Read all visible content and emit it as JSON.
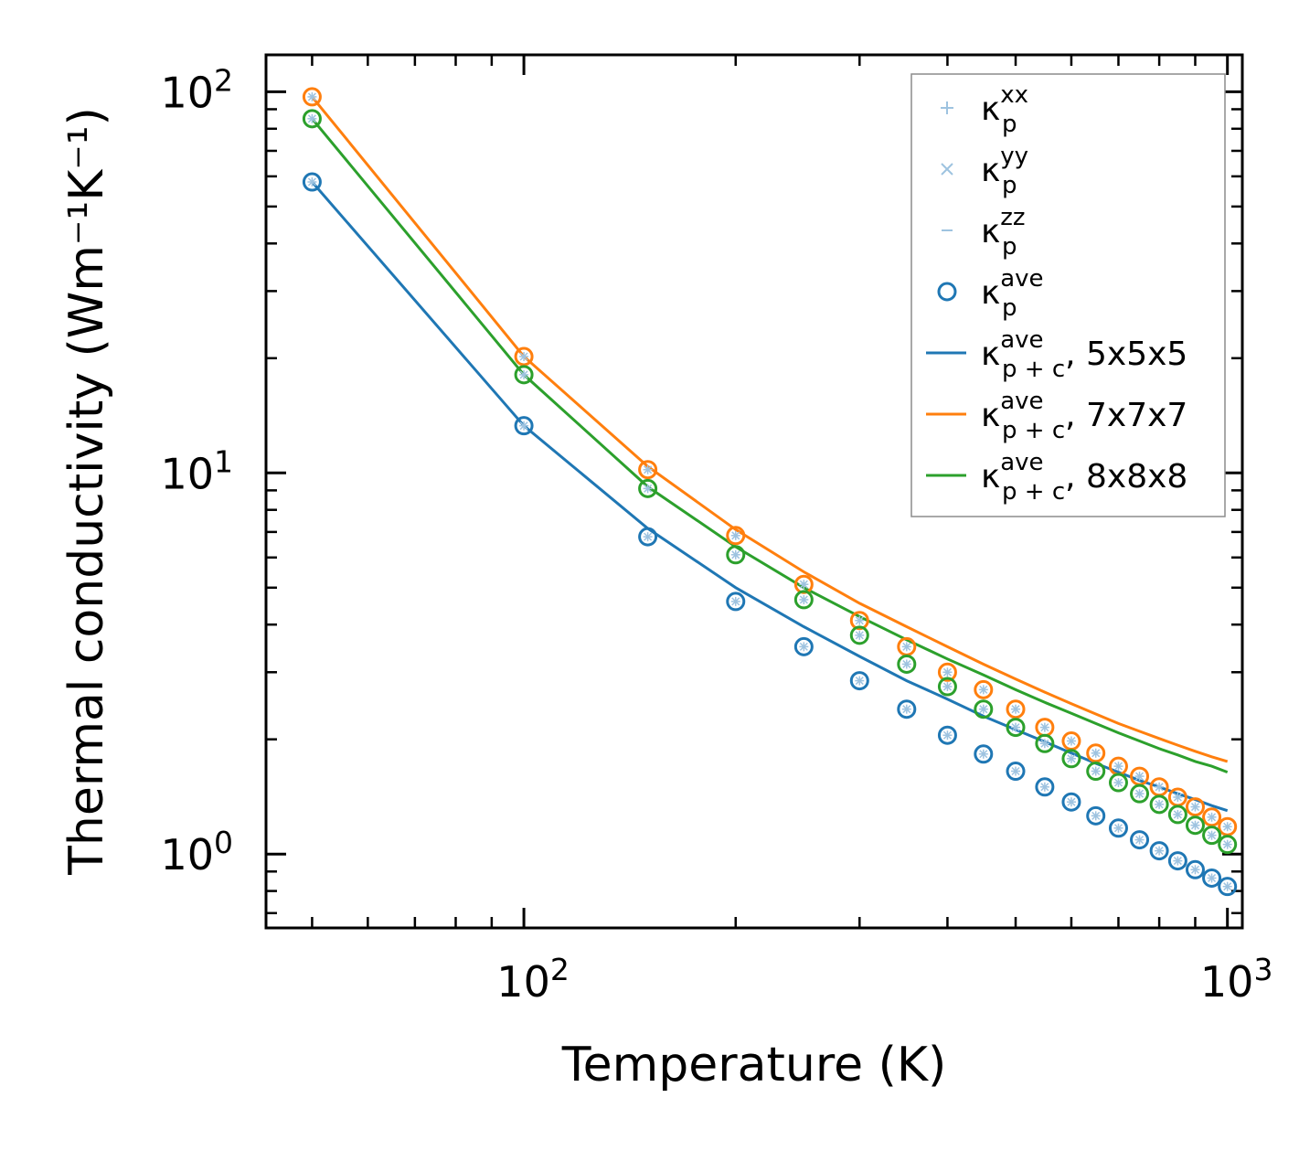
{
  "chart_data": {
    "type": "line",
    "xscale": "log",
    "yscale": "log",
    "xlabel": "Temperature (K)",
    "ylabel": "Thermal conductivity (Wm⁻¹K⁻¹)",
    "xlim": [
      43,
      1050
    ],
    "ylim": [
      0.64,
      125
    ],
    "x_ticks": [
      {
        "value": 100,
        "base": "10",
        "exp": "2"
      },
      {
        "value": 1000,
        "base": "10",
        "exp": "3"
      }
    ],
    "y_ticks": [
      {
        "value": 1,
        "base": "10",
        "exp": "0"
      },
      {
        "value": 10,
        "base": "10",
        "exp": "1"
      },
      {
        "value": 100,
        "base": "10",
        "exp": "2"
      }
    ],
    "colors": {
      "blue": "#1f77b4",
      "orange": "#ff7f0e",
      "green": "#2ca02c",
      "light": "#9ec3e0"
    },
    "legend": {
      "position": "top-right",
      "entries": [
        {
          "marker": "plus",
          "color": "#9ec3e0",
          "sym": "κ",
          "sub": "p",
          "sup": "xx",
          "suffix": ""
        },
        {
          "marker": "cross",
          "color": "#9ec3e0",
          "sym": "κ",
          "sub": "p",
          "sup": "yy",
          "suffix": ""
        },
        {
          "marker": "dash",
          "color": "#9ec3e0",
          "sym": "κ",
          "sub": "p",
          "sup": "zz",
          "suffix": ""
        },
        {
          "marker": "circle",
          "color": "#1f77b4",
          "sym": "κ",
          "sub": "p",
          "sup": "ave",
          "suffix": ""
        },
        {
          "marker": "line",
          "color": "#1f77b4",
          "sym": "κ",
          "sub": "p + c",
          "sup": "ave",
          "suffix": ", 5x5x5"
        },
        {
          "marker": "line",
          "color": "#ff7f0e",
          "sym": "κ",
          "sub": "p + c",
          "sup": "ave",
          "suffix": ", 7x7x7"
        },
        {
          "marker": "line",
          "color": "#2ca02c",
          "sym": "κ",
          "sub": "p + c",
          "sup": "ave",
          "suffix": ", 8x8x8"
        }
      ]
    },
    "x": [
      50,
      100,
      150,
      200,
      250,
      300,
      350,
      400,
      450,
      500,
      550,
      600,
      650,
      700,
      750,
      800,
      850,
      900,
      950,
      1000
    ],
    "series": [
      {
        "name": "κp ave, 5x5x5",
        "color": "#1f77b4",
        "kind": "markers",
        "values": [
          58,
          13.3,
          6.8,
          4.6,
          3.5,
          2.85,
          2.4,
          2.05,
          1.83,
          1.65,
          1.5,
          1.37,
          1.26,
          1.17,
          1.09,
          1.02,
          0.96,
          0.91,
          0.865,
          0.822
        ]
      },
      {
        "name": "κp ave, 7x7x7",
        "color": "#ff7f0e",
        "kind": "markers",
        "values": [
          97,
          20.2,
          10.2,
          6.85,
          5.1,
          4.1,
          3.5,
          3.0,
          2.7,
          2.4,
          2.15,
          1.98,
          1.84,
          1.7,
          1.6,
          1.5,
          1.41,
          1.33,
          1.25,
          1.18
        ]
      },
      {
        "name": "κp ave, 8x8x8",
        "color": "#2ca02c",
        "kind": "markers",
        "values": [
          85,
          18.1,
          9.1,
          6.1,
          4.65,
          3.75,
          3.15,
          2.75,
          2.4,
          2.15,
          1.95,
          1.78,
          1.65,
          1.54,
          1.44,
          1.35,
          1.27,
          1.19,
          1.12,
          1.06
        ]
      },
      {
        "name": "κp+c ave, 5x5x5",
        "color": "#1f77b4",
        "kind": "line",
        "values": [
          58,
          13.3,
          7.15,
          5.0,
          3.95,
          3.3,
          2.85,
          2.55,
          2.3,
          2.12,
          1.97,
          1.84,
          1.73,
          1.64,
          1.56,
          1.5,
          1.44,
          1.39,
          1.34,
          1.3
        ]
      },
      {
        "name": "κp+c ave, 7x7x7",
        "color": "#ff7f0e",
        "kind": "line",
        "values": [
          97,
          20.2,
          10.4,
          7.1,
          5.5,
          4.55,
          3.95,
          3.5,
          3.15,
          2.88,
          2.66,
          2.48,
          2.33,
          2.2,
          2.1,
          2.01,
          1.93,
          1.86,
          1.8,
          1.75
        ]
      },
      {
        "name": "κp+c ave, 8x8x8",
        "color": "#2ca02c",
        "kind": "line",
        "values": [
          85,
          18.1,
          9.2,
          6.4,
          5.0,
          4.2,
          3.65,
          3.25,
          2.95,
          2.7,
          2.5,
          2.34,
          2.2,
          2.08,
          1.98,
          1.89,
          1.82,
          1.75,
          1.7,
          1.64
        ]
      }
    ]
  }
}
